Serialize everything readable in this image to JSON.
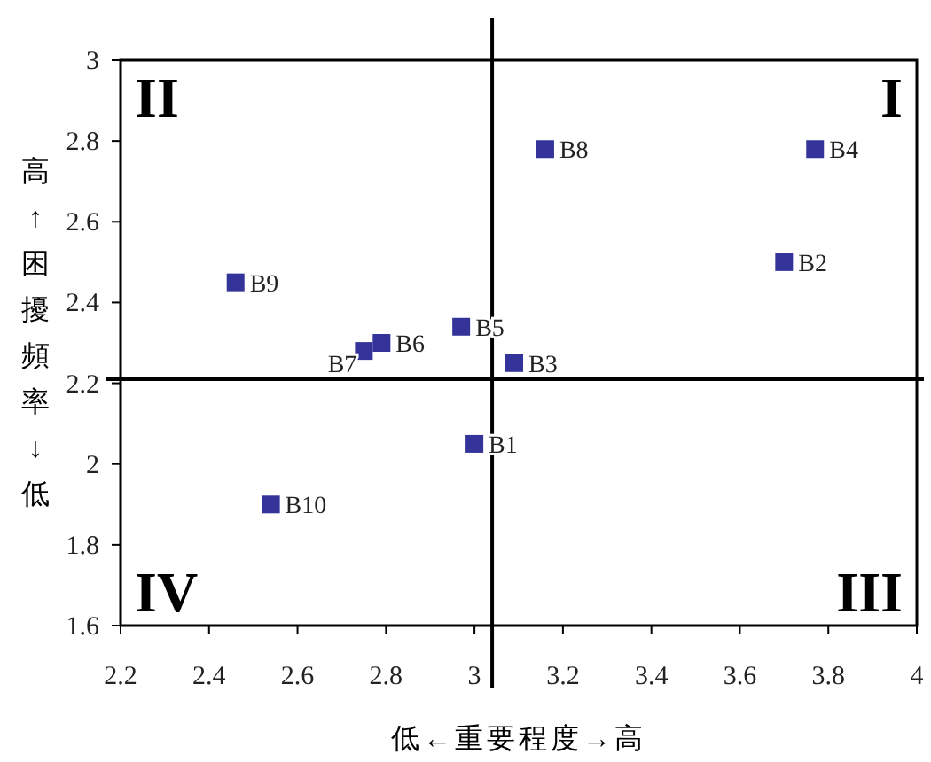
{
  "chart_data": {
    "type": "scatter",
    "xlabel": "低←重要程度→高",
    "ylabel": "高↑困擾頻率↓低",
    "xlim": [
      2.2,
      4
    ],
    "xticks": [
      2.2,
      2.4,
      2.6,
      2.8,
      3,
      3.2,
      3.4,
      3.6,
      3.8,
      4
    ],
    "ylim": [
      1.6,
      3
    ],
    "yticks": [
      1.6,
      1.8,
      2,
      2.2,
      2.4,
      2.6,
      2.8,
      3
    ],
    "x": [
      3.0,
      3.7,
      3.09,
      3.77,
      2.97,
      2.79,
      2.75,
      3.16,
      2.46,
      2.54
    ],
    "values": [
      2.05,
      2.5,
      2.25,
      2.78,
      2.34,
      2.3,
      2.28,
      2.78,
      2.45,
      1.9
    ],
    "value_labels": [
      "B1",
      "B2",
      "B3",
      "B4",
      "B5",
      "B6",
      "B7",
      "B8",
      "B9",
      "B10"
    ],
    "color": "#333399",
    "marker": "square",
    "grid": false,
    "ref_lines": [
      {
        "axis": "x",
        "value": 3.04
      },
      {
        "axis": "y",
        "value": 2.21
      }
    ],
    "annotations": [
      "II",
      "I",
      "IV",
      "III"
    ]
  }
}
